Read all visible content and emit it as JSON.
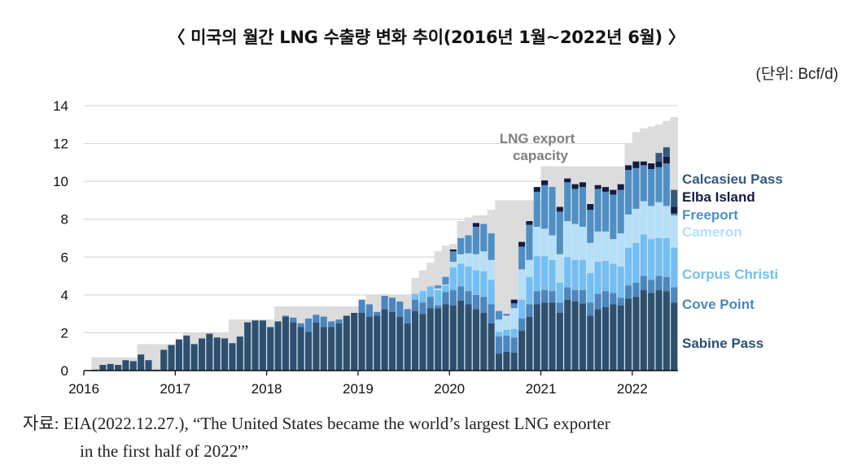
{
  "header": {
    "title": "〈 미국의 월간 LNG 수출량 변화 추이(2016년 1월~2022년 6월) 〉",
    "unit": "(단위: Bcf/d)"
  },
  "source": {
    "line1": "자료: EIA(2022.12.27.), “The United States became the world’s largest LNG exporter",
    "line2": "in the first half of 2022'”"
  },
  "chart_data": {
    "type": "bar",
    "stacked": true,
    "title": "미국의 월간 LNG 수출량 변화 추이(2016년 1월~2022년 6월)",
    "ylabel": "Bcf/d",
    "xlabel": "",
    "ylim": [
      0,
      14
    ],
    "yticks": [
      0,
      2,
      4,
      6,
      8,
      10,
      12,
      14
    ],
    "xtick_labels": [
      "2016",
      "2017",
      "2018",
      "2019",
      "2020",
      "2021",
      "2022"
    ],
    "grid": true,
    "legend_position": "right",
    "capacity_label": [
      "LNG export",
      "capacity"
    ],
    "capacity_color": "#dcdcdc",
    "x_start": "2016-01",
    "x_end": "2022-06",
    "capacity": [
      0,
      0.7,
      0.7,
      0.7,
      0.7,
      0.7,
      0.7,
      1.4,
      1.4,
      1.4,
      1.4,
      1.4,
      1.4,
      2.0,
      2.0,
      2.0,
      2.0,
      2.0,
      2.0,
      2.7,
      2.7,
      2.7,
      2.7,
      2.7,
      2.7,
      3.4,
      3.4,
      3.4,
      3.4,
      3.4,
      3.4,
      3.4,
      3.4,
      3.4,
      3.4,
      3.4,
      3.4,
      4.0,
      4.0,
      4.0,
      4.0,
      4.0,
      4.0,
      4.9,
      5.3,
      5.7,
      6.3,
      6.6,
      6.7,
      7.9,
      8.1,
      8.2,
      8.2,
      8.5,
      9.0,
      9.0,
      9.0,
      9.0,
      9.0,
      9.0,
      10.8,
      10.8,
      10.8,
      10.8,
      10.8,
      10.8,
      10.8,
      10.8,
      10.8,
      10.8,
      10.8,
      12.0,
      12.6,
      12.8,
      12.9,
      13.0,
      13.2,
      13.4
    ],
    "series": [
      {
        "name": "Sabine Pass",
        "color": "#2d5070",
        "values": [
          0,
          0.05,
          0.3,
          0.35,
          0.3,
          0.55,
          0.5,
          0.85,
          0.55,
          0.05,
          1.1,
          1.35,
          1.65,
          1.85,
          1.4,
          1.7,
          1.95,
          1.75,
          1.7,
          1.45,
          1.8,
          2.55,
          2.65,
          2.65,
          2.3,
          2.6,
          2.85,
          2.55,
          2.3,
          2.05,
          2.55,
          2.3,
          2.3,
          2.5,
          2.9,
          3.05,
          3.05,
          2.85,
          2.9,
          3.25,
          3.1,
          2.85,
          2.5,
          3.15,
          3.0,
          3.3,
          3.3,
          3.5,
          3.45,
          3.7,
          3.5,
          3.25,
          3.05,
          2.5,
          0.9,
          1.0,
          0.95,
          2.1,
          2.85,
          3.5,
          3.6,
          3.6,
          3.05,
          3.75,
          3.65,
          3.55,
          2.9,
          3.25,
          3.35,
          3.5,
          3.45,
          3.8,
          3.9,
          4.25,
          4.1,
          4.25,
          4.2,
          3.6
        ]
      },
      {
        "name": "Cove Point",
        "color": "#4a86c0",
        "values": [
          0,
          0,
          0,
          0,
          0,
          0,
          0,
          0,
          0,
          0,
          0,
          0,
          0,
          0,
          0,
          0,
          0,
          0,
          0,
          0,
          0,
          0,
          0,
          0,
          0,
          0,
          0.05,
          0.25,
          0.2,
          0.7,
          0.4,
          0.55,
          0.3,
          0.2,
          0,
          0,
          0.7,
          0.65,
          0.2,
          0.7,
          0.75,
          0.8,
          0.75,
          0.6,
          0.6,
          0.6,
          0.15,
          0.65,
          0.8,
          0.75,
          0.7,
          0.75,
          0.85,
          1.0,
          0.9,
          0.85,
          0.8,
          0.65,
          0.65,
          0.7,
          0.65,
          0.6,
          0.55,
          0.65,
          0.6,
          0.7,
          0.7,
          0.8,
          0.85,
          0.6,
          0.4,
          0.7,
          0.75,
          0.75,
          0.7,
          0.75,
          0.75,
          0.8
        ]
      },
      {
        "name": "Corpus Christi",
        "color": "#72bff5",
        "values": [
          0,
          0,
          0,
          0,
          0,
          0,
          0,
          0,
          0,
          0,
          0,
          0,
          0,
          0,
          0,
          0,
          0,
          0,
          0,
          0,
          0,
          0,
          0,
          0,
          0,
          0,
          0,
          0,
          0,
          0,
          0,
          0,
          0,
          0,
          0,
          0,
          0,
          0,
          0,
          0,
          0,
          0,
          0,
          0.3,
          0.6,
          0.55,
          0.8,
          0.35,
          1.2,
          1.2,
          1.3,
          1.3,
          1.35,
          1.3,
          0.25,
          0.3,
          0.45,
          1.0,
          1.45,
          1.85,
          1.8,
          1.65,
          1.05,
          1.6,
          1.6,
          1.6,
          1.55,
          1.7,
          1.6,
          1.55,
          1.65,
          2.0,
          2.1,
          2.2,
          2.15,
          2.0,
          2.05,
          2.1
        ]
      },
      {
        "name": "Cameron",
        "color": "#b3e0fa",
        "values": [
          0,
          0,
          0,
          0,
          0,
          0,
          0,
          0,
          0,
          0,
          0,
          0,
          0,
          0,
          0,
          0,
          0,
          0,
          0,
          0,
          0,
          0,
          0,
          0,
          0,
          0,
          0,
          0,
          0,
          0,
          0,
          0,
          0,
          0,
          0,
          0,
          0,
          0,
          0,
          0,
          0,
          0,
          0,
          0,
          0,
          0,
          0.1,
          0.05,
          0.3,
          0.5,
          0.7,
          0.85,
          1.05,
          1.05,
          0.65,
          0.75,
          1.1,
          1.6,
          0.9,
          1.55,
          1.45,
          1.3,
          1.5,
          1.9,
          1.9,
          1.75,
          1.6,
          1.6,
          1.55,
          1.3,
          1.75,
          1.75,
          1.8,
          1.75,
          1.75,
          1.9,
          1.7,
          1.7
        ]
      },
      {
        "name": "Freeport",
        "color": "#4e8fc6",
        "values": [
          0,
          0,
          0,
          0,
          0,
          0,
          0,
          0,
          0,
          0,
          0,
          0,
          0,
          0,
          0,
          0,
          0,
          0,
          0,
          0,
          0,
          0,
          0,
          0,
          0,
          0,
          0,
          0,
          0,
          0,
          0,
          0,
          0,
          0,
          0,
          0,
          0,
          0,
          0,
          0,
          0,
          0,
          0,
          0,
          0,
          0,
          0.15,
          0.4,
          0.55,
          0.85,
          0.95,
          1.45,
          1.45,
          1.4,
          0.45,
          0.1,
          0.25,
          1.2,
          1.85,
          1.85,
          2.3,
          2.55,
          2.25,
          2.05,
          1.85,
          2.1,
          1.75,
          2.25,
          2.1,
          2.35,
          2.3,
          2.35,
          2.15,
          1.9,
          1.95,
          1.85,
          2.25,
          0.1
        ]
      },
      {
        "name": "Elba Island",
        "color": "#141c44",
        "values": [
          0,
          0,
          0,
          0,
          0,
          0,
          0,
          0,
          0,
          0,
          0,
          0,
          0,
          0,
          0,
          0,
          0,
          0,
          0,
          0,
          0,
          0,
          0,
          0,
          0,
          0,
          0,
          0,
          0,
          0,
          0,
          0,
          0,
          0,
          0,
          0,
          0,
          0,
          0,
          0,
          0,
          0,
          0,
          0,
          0,
          0,
          0,
          0,
          0.1,
          0.0,
          0.0,
          0.2,
          0.0,
          0.0,
          0.0,
          0.0,
          0.2,
          0.25,
          0.2,
          0.25,
          0.25,
          0.0,
          0.25,
          0.2,
          0.25,
          0.25,
          0.3,
          0.2,
          0.25,
          0.25,
          0.3,
          0.25,
          0.35,
          0.2,
          0.3,
          0.3,
          0.35,
          0.35
        ]
      },
      {
        "name": "Calcasieu Pass",
        "color": "#33597f",
        "values": [
          0,
          0,
          0,
          0,
          0,
          0,
          0,
          0,
          0,
          0,
          0,
          0,
          0,
          0,
          0,
          0,
          0,
          0,
          0,
          0,
          0,
          0,
          0,
          0,
          0,
          0,
          0,
          0,
          0,
          0,
          0,
          0,
          0,
          0,
          0,
          0,
          0,
          0,
          0,
          0,
          0,
          0,
          0,
          0,
          0,
          0,
          0,
          0,
          0,
          0,
          0,
          0,
          0,
          0,
          0,
          0,
          0,
          0,
          0,
          0,
          0,
          0,
          0,
          0,
          0,
          0,
          0,
          0,
          0,
          0,
          0,
          0,
          0,
          0,
          0,
          0.45,
          0.5,
          0.9
        ]
      }
    ],
    "legend": [
      {
        "name": "Calcasieu Pass",
        "color": "#33597f"
      },
      {
        "name": "Elba Island",
        "color": "#141c44"
      },
      {
        "name": "Freeport",
        "color": "#4e8fc6"
      },
      {
        "name": "Cameron",
        "color": "#b3e0fa"
      },
      {
        "name": "Corpus Christi",
        "color": "#72bff5"
      },
      {
        "name": "Cove Point",
        "color": "#4a86c0"
      },
      {
        "name": "Sabine Pass",
        "color": "#2d5070"
      }
    ]
  }
}
